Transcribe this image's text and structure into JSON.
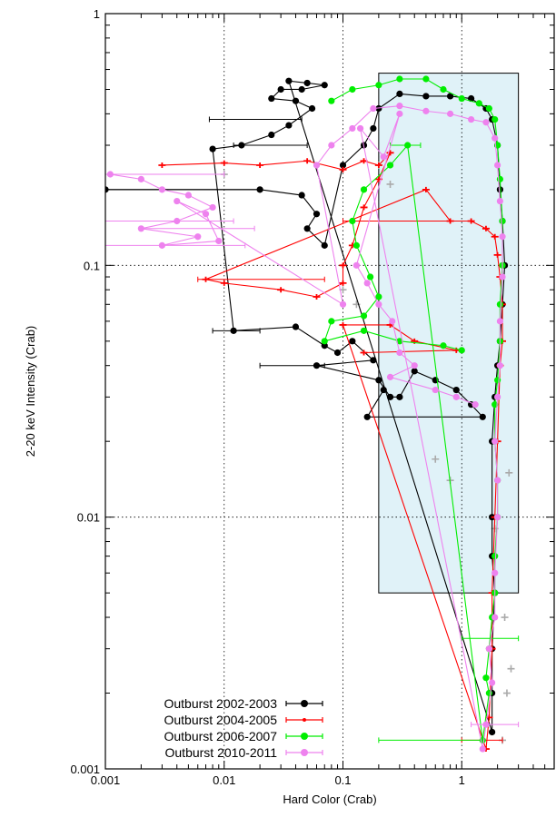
{
  "chart_data": {
    "type": "scatter",
    "xlabel": "Hard Color (Crab)",
    "ylabel": "2-20 keV Intensity (Crab)",
    "xscale": "log",
    "yscale": "log",
    "xlim": [
      0.001,
      6
    ],
    "ylim": [
      0.001,
      1
    ],
    "grid": true,
    "legend_position": "bottom-left",
    "x_ticks": [
      {
        "value": 0.001,
        "label": "0.001"
      },
      {
        "value": 0.01,
        "label": "0.01"
      },
      {
        "value": 0.1,
        "label": "0.1"
      },
      {
        "value": 1,
        "label": "1"
      }
    ],
    "y_ticks": [
      {
        "value": 1,
        "label": "1"
      },
      {
        "value": 0.1,
        "label": "0.1"
      },
      {
        "value": 0.01,
        "label": "0.01"
      },
      {
        "value": 0.001,
        "label": "0.001"
      }
    ],
    "highlight_box": {
      "x": [
        0.2,
        3.0
      ],
      "y": [
        0.005,
        0.58
      ],
      "color": "#e0f2f8"
    },
    "series": [
      {
        "name": "Outburst 2002-2003",
        "color": "#000000",
        "marker": "filled-circle",
        "points": [
          [
            0.001,
            0.2
          ],
          [
            0.02,
            0.2
          ],
          [
            0.045,
            0.19
          ],
          [
            0.06,
            0.16
          ],
          [
            0.05,
            0.14
          ],
          [
            0.07,
            0.12
          ],
          [
            0.1,
            0.25
          ],
          [
            0.15,
            0.3
          ],
          [
            0.18,
            0.35
          ],
          [
            0.2,
            0.42
          ],
          [
            0.3,
            0.48
          ],
          [
            0.5,
            0.47
          ],
          [
            0.8,
            0.47
          ],
          [
            1.2,
            0.46
          ],
          [
            1.6,
            0.42
          ],
          [
            1.8,
            0.38
          ],
          [
            2.0,
            0.3
          ],
          [
            2.1,
            0.2
          ],
          [
            2.2,
            0.15
          ],
          [
            2.3,
            0.1
          ],
          [
            2.2,
            0.07
          ],
          [
            2.1,
            0.05
          ],
          [
            2.0,
            0.04
          ],
          [
            1.9,
            0.03
          ],
          [
            1.8,
            0.02
          ],
          [
            1.8,
            0.01
          ],
          [
            1.8,
            0.007
          ],
          [
            1.9,
            0.005
          ],
          [
            1.8,
            0.003
          ],
          [
            1.8,
            0.002
          ],
          [
            1.8,
            0.0014
          ],
          [
            0.035,
            0.54
          ],
          [
            0.05,
            0.53
          ],
          [
            0.07,
            0.52
          ],
          [
            0.045,
            0.5
          ],
          [
            0.03,
            0.5
          ],
          [
            0.025,
            0.46
          ],
          [
            0.04,
            0.45
          ],
          [
            0.055,
            0.42
          ],
          [
            0.035,
            0.36
          ],
          [
            0.025,
            0.33
          ],
          [
            0.014,
            0.3
          ],
          [
            0.008,
            0.29
          ],
          [
            0.012,
            0.055
          ],
          [
            0.04,
            0.057
          ],
          [
            0.07,
            0.048
          ],
          [
            0.09,
            0.045
          ],
          [
            0.12,
            0.05
          ],
          [
            0.18,
            0.042
          ],
          [
            0.06,
            0.04
          ],
          [
            0.2,
            0.035
          ],
          [
            0.25,
            0.03
          ],
          [
            0.3,
            0.03
          ],
          [
            0.4,
            0.038
          ],
          [
            0.6,
            0.035
          ],
          [
            0.9,
            0.032
          ],
          [
            1.2,
            0.028
          ],
          [
            1.5,
            0.025
          ],
          [
            0.16,
            0.025
          ],
          [
            0.22,
            0.032
          ]
        ],
        "error_bars": [
          [
            0.001,
            0.02,
            0.2
          ],
          [
            0.012,
            0.05,
            0.3
          ],
          [
            0.0075,
            0.045,
            0.38
          ],
          [
            0.008,
            0.02,
            0.055
          ],
          [
            0.02,
            0.07,
            0.04
          ]
        ]
      },
      {
        "name": "Outburst 2004-2005",
        "color": "#ff0000",
        "marker": "cross",
        "points": [
          [
            0.003,
            0.25
          ],
          [
            0.01,
            0.255
          ],
          [
            0.02,
            0.25
          ],
          [
            0.05,
            0.26
          ],
          [
            0.1,
            0.24
          ],
          [
            0.15,
            0.26
          ],
          [
            0.2,
            0.25
          ],
          [
            0.25,
            0.28
          ],
          [
            0.2,
            0.22
          ],
          [
            0.15,
            0.17
          ],
          [
            0.12,
            0.12
          ],
          [
            0.1,
            0.1
          ],
          [
            0.1,
            0.085
          ],
          [
            0.06,
            0.075
          ],
          [
            0.03,
            0.08
          ],
          [
            0.01,
            0.085
          ],
          [
            0.007,
            0.088
          ],
          [
            0.5,
            0.2
          ],
          [
            0.8,
            0.15
          ],
          [
            1.2,
            0.15
          ],
          [
            1.6,
            0.14
          ],
          [
            1.9,
            0.13
          ],
          [
            2.0,
            0.11
          ],
          [
            2.1,
            0.09
          ],
          [
            2.2,
            0.07
          ],
          [
            2.2,
            0.05
          ],
          [
            2.1,
            0.04
          ],
          [
            2.0,
            0.02
          ],
          [
            1.9,
            0.01
          ],
          [
            1.8,
            0.005
          ],
          [
            1.8,
            0.003
          ],
          [
            1.7,
            0.0016
          ],
          [
            1.6,
            0.0012
          ],
          [
            0.1,
            0.058
          ],
          [
            0.25,
            0.058
          ],
          [
            0.4,
            0.05
          ],
          [
            0.9,
            0.046
          ],
          [
            0.15,
            0.045
          ]
        ],
        "error_bars": [
          [
            0.006,
            0.07,
            0.088
          ],
          [
            0.1,
            1.2,
            0.15
          ],
          [
            1.0,
            2.2,
            0.0013
          ]
        ]
      },
      {
        "name": "Outburst 2006-2007",
        "color": "#00ee00",
        "marker": "filled-circle",
        "points": [
          [
            0.08,
            0.45
          ],
          [
            0.12,
            0.5
          ],
          [
            0.2,
            0.52
          ],
          [
            0.3,
            0.55
          ],
          [
            0.5,
            0.55
          ],
          [
            0.7,
            0.5
          ],
          [
            1.0,
            0.46
          ],
          [
            1.4,
            0.44
          ],
          [
            1.7,
            0.42
          ],
          [
            1.9,
            0.38
          ],
          [
            2.0,
            0.3
          ],
          [
            2.1,
            0.22
          ],
          [
            2.2,
            0.15
          ],
          [
            2.2,
            0.1
          ],
          [
            2.1,
            0.07
          ],
          [
            2.1,
            0.05
          ],
          [
            2.0,
            0.035
          ],
          [
            1.9,
            0.028
          ],
          [
            1.9,
            0.02
          ],
          [
            2.0,
            0.014
          ],
          [
            2.0,
            0.01
          ],
          [
            1.9,
            0.007
          ],
          [
            1.9,
            0.005
          ],
          [
            1.8,
            0.004
          ],
          [
            1.7,
            0.003
          ],
          [
            1.6,
            0.0023
          ],
          [
            1.7,
            0.002
          ],
          [
            1.5,
            0.0013
          ],
          [
            0.35,
            0.3
          ],
          [
            0.25,
            0.25
          ],
          [
            0.15,
            0.2
          ],
          [
            0.12,
            0.15
          ],
          [
            0.13,
            0.12
          ],
          [
            0.17,
            0.09
          ],
          [
            0.2,
            0.075
          ],
          [
            0.15,
            0.063
          ],
          [
            0.08,
            0.06
          ],
          [
            0.07,
            0.05
          ],
          [
            0.15,
            0.055
          ],
          [
            0.3,
            0.05
          ],
          [
            0.7,
            0.048
          ],
          [
            1.0,
            0.046
          ]
        ],
        "error_bars": [
          [
            0.25,
            0.45,
            0.3
          ],
          [
            0.2,
            1.5,
            0.0013
          ],
          [
            1.0,
            3.0,
            0.0033
          ]
        ]
      },
      {
        "name": "Outburst 2010-2011",
        "color": "#ee82ee",
        "marker": "filled-circle",
        "points": [
          [
            0.0011,
            0.23
          ],
          [
            0.002,
            0.22
          ],
          [
            0.003,
            0.2
          ],
          [
            0.005,
            0.19
          ],
          [
            0.008,
            0.17
          ],
          [
            0.004,
            0.15
          ],
          [
            0.002,
            0.14
          ],
          [
            0.006,
            0.13
          ],
          [
            0.003,
            0.12
          ],
          [
            0.009,
            0.125
          ],
          [
            0.007,
            0.16
          ],
          [
            0.004,
            0.18
          ],
          [
            0.1,
            0.07
          ],
          [
            0.06,
            0.25
          ],
          [
            0.08,
            0.3
          ],
          [
            0.12,
            0.35
          ],
          [
            0.18,
            0.42
          ],
          [
            0.3,
            0.43
          ],
          [
            0.5,
            0.41
          ],
          [
            0.8,
            0.4
          ],
          [
            1.2,
            0.38
          ],
          [
            1.6,
            0.37
          ],
          [
            1.9,
            0.32
          ],
          [
            2.0,
            0.25
          ],
          [
            2.1,
            0.18
          ],
          [
            2.2,
            0.13
          ],
          [
            2.2,
            0.09
          ],
          [
            2.1,
            0.06
          ],
          [
            2.1,
            0.04
          ],
          [
            2.0,
            0.03
          ],
          [
            1.9,
            0.02
          ],
          [
            2.0,
            0.014
          ],
          [
            2.0,
            0.01
          ],
          [
            1.9,
            0.006
          ],
          [
            1.9,
            0.004
          ],
          [
            1.7,
            0.003
          ],
          [
            1.8,
            0.0022
          ],
          [
            1.6,
            0.0015
          ],
          [
            1.5,
            0.0012
          ],
          [
            0.14,
            0.35
          ],
          [
            0.22,
            0.27
          ],
          [
            0.3,
            0.4
          ],
          [
            0.13,
            0.1
          ],
          [
            0.16,
            0.085
          ],
          [
            0.2,
            0.07
          ],
          [
            0.26,
            0.06
          ],
          [
            0.3,
            0.045
          ],
          [
            0.4,
            0.04
          ],
          [
            0.25,
            0.036
          ],
          [
            0.6,
            0.032
          ],
          [
            0.9,
            0.03
          ],
          [
            1.3,
            0.028
          ]
        ],
        "error_bars": [
          [
            0.001,
            0.01,
            0.23
          ],
          [
            0.001,
            0.012,
            0.15
          ],
          [
            0.001,
            0.015,
            0.12
          ],
          [
            0.002,
            0.018,
            0.14
          ],
          [
            1.2,
            3.0,
            0.0015
          ]
        ]
      }
    ],
    "gray_points": [
      [
        0.2,
        0.25
      ],
      [
        0.13,
        0.07
      ],
      [
        2.5,
        0.015
      ],
      [
        2.3,
        0.004
      ],
      [
        2.4,
        0.002
      ],
      [
        2.2,
        0.0013
      ],
      [
        0.6,
        0.017
      ],
      [
        0.8,
        0.014
      ],
      [
        0.1,
        0.08
      ],
      [
        0.25,
        0.21
      ],
      [
        1.9,
        0.009
      ],
      [
        2.6,
        0.0025
      ],
      [
        0.01,
        0.23
      ]
    ]
  }
}
